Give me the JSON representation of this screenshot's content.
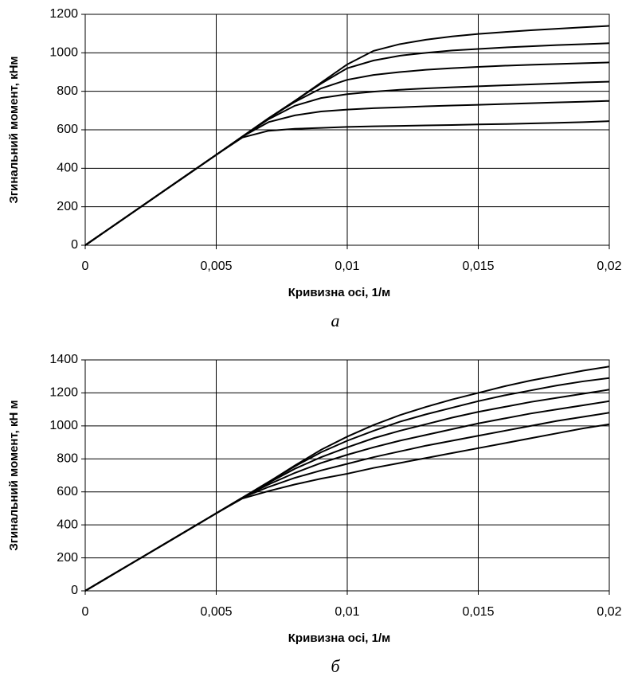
{
  "chart_data": [
    {
      "type": "line",
      "xlabel": "Кривизна осі, 1/м",
      "ylabel": "Згинальний момент, кНм",
      "caption": "а",
      "grid": true,
      "x": [
        0,
        0.001,
        0.002,
        0.003,
        0.004,
        0.005,
        0.006,
        0.007,
        0.008,
        0.009,
        0.01,
        0.011,
        0.012,
        0.013,
        0.014,
        0.015,
        0.016,
        0.017,
        0.018,
        0.019,
        0.02
      ],
      "xlim": [
        0,
        0.02
      ],
      "xticks": [
        0,
        {
          "value": 0.005,
          "label": "0,005"
        },
        {
          "value": 0.01,
          "label": "0,01"
        },
        {
          "value": 0.015,
          "label": "0,015"
        },
        {
          "value": 0.02,
          "label": "0,02"
        }
      ],
      "ylim": [
        0,
        1200
      ],
      "yticks": [
        0,
        200,
        400,
        600,
        800,
        1000,
        1200
      ],
      "series": [
        {
          "color": "#000000",
          "values": [
            0,
            94,
            188,
            282,
            376,
            470,
            560,
            595,
            605,
            610,
            615,
            618,
            620,
            623,
            625,
            628,
            630,
            633,
            636,
            640,
            645
          ]
        },
        {
          "color": "#000000",
          "values": [
            0,
            94,
            188,
            282,
            376,
            470,
            565,
            640,
            675,
            695,
            705,
            712,
            717,
            722,
            726,
            730,
            734,
            738,
            742,
            746,
            750
          ]
        },
        {
          "color": "#000000",
          "values": [
            0,
            94,
            188,
            282,
            376,
            470,
            565,
            655,
            725,
            765,
            785,
            798,
            808,
            815,
            821,
            826,
            831,
            836,
            841,
            846,
            850
          ]
        },
        {
          "color": "#000000",
          "values": [
            0,
            94,
            188,
            282,
            376,
            470,
            565,
            660,
            745,
            815,
            860,
            885,
            900,
            912,
            920,
            927,
            933,
            938,
            942,
            946,
            950
          ]
        },
        {
          "color": "#000000",
          "values": [
            0,
            94,
            188,
            282,
            376,
            470,
            565,
            660,
            750,
            840,
            920,
            960,
            985,
            1000,
            1012,
            1020,
            1028,
            1034,
            1040,
            1045,
            1050
          ]
        },
        {
          "color": "#000000",
          "values": [
            0,
            94,
            188,
            282,
            376,
            470,
            565,
            660,
            750,
            845,
            940,
            1010,
            1045,
            1068,
            1085,
            1098,
            1108,
            1117,
            1125,
            1133,
            1140
          ]
        }
      ]
    },
    {
      "type": "line",
      "xlabel": "Кривизна осі, 1/м",
      "ylabel": "Згинальний момент, кН м",
      "caption": "б",
      "grid": true,
      "x": [
        0,
        0.001,
        0.002,
        0.003,
        0.004,
        0.005,
        0.006,
        0.007,
        0.008,
        0.009,
        0.01,
        0.011,
        0.012,
        0.013,
        0.014,
        0.015,
        0.016,
        0.017,
        0.018,
        0.019,
        0.02
      ],
      "xlim": [
        0,
        0.02
      ],
      "xticks": [
        0,
        {
          "value": 0.005,
          "label": "0,005"
        },
        {
          "value": 0.01,
          "label": "0,01"
        },
        {
          "value": 0.015,
          "label": "0,015"
        },
        {
          "value": 0.02,
          "label": "0,02"
        }
      ],
      "ylim": [
        0,
        1400
      ],
      "yticks": [
        0,
        200,
        400,
        600,
        800,
        1000,
        1200,
        1400
      ],
      "series": [
        {
          "color": "#000000",
          "values": [
            0,
            94,
            188,
            282,
            376,
            470,
            560,
            605,
            645,
            680,
            710,
            745,
            775,
            805,
            835,
            865,
            895,
            925,
            955,
            985,
            1010
          ]
        },
        {
          "color": "#000000",
          "values": [
            0,
            94,
            188,
            282,
            376,
            470,
            565,
            630,
            685,
            730,
            770,
            810,
            845,
            880,
            910,
            940,
            970,
            1000,
            1030,
            1055,
            1080
          ]
        },
        {
          "color": "#000000",
          "values": [
            0,
            94,
            188,
            282,
            376,
            470,
            565,
            645,
            715,
            775,
            825,
            870,
            910,
            945,
            980,
            1015,
            1045,
            1075,
            1100,
            1125,
            1150
          ]
        },
        {
          "color": "#000000",
          "values": [
            0,
            94,
            188,
            282,
            376,
            470,
            565,
            655,
            740,
            810,
            870,
            925,
            970,
            1010,
            1050,
            1085,
            1115,
            1145,
            1170,
            1195,
            1220
          ]
        },
        {
          "color": "#000000",
          "values": [
            0,
            94,
            188,
            282,
            376,
            470,
            565,
            660,
            755,
            840,
            910,
            970,
            1025,
            1070,
            1110,
            1150,
            1185,
            1215,
            1245,
            1270,
            1290
          ]
        },
        {
          "color": "#000000",
          "values": [
            0,
            94,
            188,
            282,
            376,
            470,
            565,
            660,
            760,
            855,
            935,
            1005,
            1065,
            1115,
            1160,
            1200,
            1240,
            1275,
            1305,
            1335,
            1360
          ]
        }
      ]
    }
  ]
}
